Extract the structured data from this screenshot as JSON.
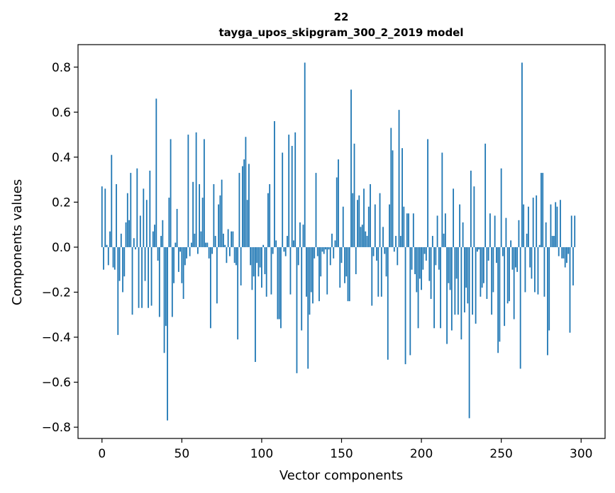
{
  "chart_data": {
    "type": "bar",
    "title_line1": "22",
    "title_line2": "tayga_upos_skipgram_300_2_2019 model",
    "xlabel": "Vector components",
    "ylabel": "Components values",
    "xlim": [
      -15,
      315
    ],
    "ylim": [
      -0.85,
      0.9
    ],
    "xticks": [
      0,
      50,
      100,
      150,
      200,
      250,
      300
    ],
    "yticks": [
      -0.8,
      -0.6,
      -0.4,
      -0.2,
      0.0,
      0.2,
      0.4,
      0.6,
      0.8
    ],
    "ytick_labels": [
      "−0.8",
      "−0.6",
      "−0.4",
      "−0.2",
      "0.0",
      "0.2",
      "0.4",
      "0.6",
      "0.8"
    ],
    "bar_color": "#1f77b4",
    "values": [
      0.27,
      -0.1,
      0.26,
      0.01,
      -0.08,
      0.07,
      0.41,
      -0.09,
      -0.1,
      0.28,
      -0.39,
      -0.15,
      0.06,
      -0.2,
      -0.13,
      0.11,
      0.24,
      0.12,
      0.33,
      -0.3,
      0.04,
      -0.01,
      0.35,
      -0.27,
      0.14,
      -0.27,
      0.26,
      -0.15,
      0.21,
      -0.27,
      0.34,
      -0.26,
      0.07,
      0.1,
      0.66,
      -0.06,
      -0.31,
      0.05,
      0.12,
      -0.47,
      -0.35,
      -0.77,
      0.22,
      0.48,
      -0.31,
      -0.16,
      0.02,
      0.17,
      -0.11,
      -0.02,
      -0.16,
      -0.23,
      -0.08,
      -0.05,
      0.5,
      -0.04,
      0.02,
      0.29,
      0.06,
      0.51,
      -0.03,
      0.28,
      0.07,
      0.22,
      0.48,
      0.02,
      0.02,
      -0.05,
      -0.36,
      -0.03,
      0.28,
      0.05,
      -0.25,
      0.19,
      0.23,
      0.3,
      0.06,
      0.01,
      -0.07,
      0.08,
      -0.04,
      0.07,
      0.07,
      -0.07,
      -0.08,
      -0.41,
      0.33,
      -0.17,
      0.36,
      0.39,
      0.49,
      0.21,
      0.37,
      -0.08,
      -0.19,
      -0.13,
      -0.51,
      -0.07,
      -0.13,
      -0.09,
      -0.18,
      0.01,
      -0.12,
      -0.22,
      0.24,
      0.28,
      -0.21,
      -0.03,
      0.56,
      0.03,
      -0.32,
      -0.32,
      -0.36,
      0.42,
      -0.02,
      -0.04,
      0.05,
      0.5,
      -0.21,
      0.45,
      0.03,
      0.51,
      -0.56,
      -0.08,
      0.11,
      -0.37,
      0.1,
      0.82,
      -0.22,
      -0.54,
      -0.3,
      -0.2,
      -0.25,
      -0.05,
      0.33,
      -0.04,
      -0.24,
      -0.13,
      -0.02,
      -0.03,
      -0.01,
      -0.21,
      -0.01,
      -0.08,
      0.06,
      -0.05,
      0.03,
      0.31,
      0.39,
      -0.18,
      -0.07,
      0.18,
      -0.16,
      -0.13,
      -0.24,
      -0.24,
      0.7,
      0.24,
      0.46,
      -0.12,
      0.21,
      0.23,
      0.09,
      0.1,
      0.26,
      0.07,
      0.05,
      0.18,
      0.28,
      -0.26,
      -0.04,
      0.19,
      -0.06,
      -0.22,
      0.24,
      -0.22,
      0.09,
      -0.03,
      -0.13,
      -0.5,
      0.19,
      0.53,
      0.43,
      -0.02,
      0.05,
      -0.08,
      0.61,
      0.05,
      0.44,
      0.18,
      -0.52,
      0.15,
      0.15,
      -0.48,
      -0.1,
      0.15,
      -0.12,
      -0.2,
      -0.36,
      -0.14,
      -0.19,
      -0.1,
      -0.03,
      -0.06,
      0.48,
      -0.15,
      -0.23,
      0.05,
      -0.36,
      -0.08,
      0.14,
      -0.1,
      -0.36,
      0.42,
      0.06,
      0.15,
      -0.43,
      -0.16,
      -0.19,
      -0.37,
      0.26,
      -0.3,
      -0.14,
      -0.3,
      0.19,
      -0.41,
      0.11,
      -0.29,
      -0.18,
      -0.25,
      -0.76,
      0.34,
      -0.3,
      0.27,
      -0.34,
      -0.02,
      -0.01,
      -0.22,
      -0.18,
      -0.16,
      0.46,
      -0.23,
      -0.06,
      0.15,
      -0.3,
      -0.2,
      0.14,
      -0.07,
      -0.47,
      -0.42,
      0.35,
      -0.04,
      -0.35,
      0.13,
      -0.25,
      -0.24,
      0.03,
      -0.1,
      -0.32,
      -0.09,
      -0.11,
      0.12,
      -0.54,
      0.82,
      0.19,
      -0.2,
      0.06,
      0.18,
      -0.09,
      -0.14,
      0.22,
      -0.2,
      0.23,
      -0.21,
      0.01,
      0.33,
      0.33,
      -0.22,
      0.11,
      -0.48,
      -0.37,
      0.19,
      0.05,
      0.05,
      0.2,
      0.18,
      -0.04,
      0.21,
      -0.05,
      -0.05,
      -0.09,
      -0.07,
      -0.03,
      -0.38,
      0.14,
      -0.17,
      0.14
    ]
  }
}
